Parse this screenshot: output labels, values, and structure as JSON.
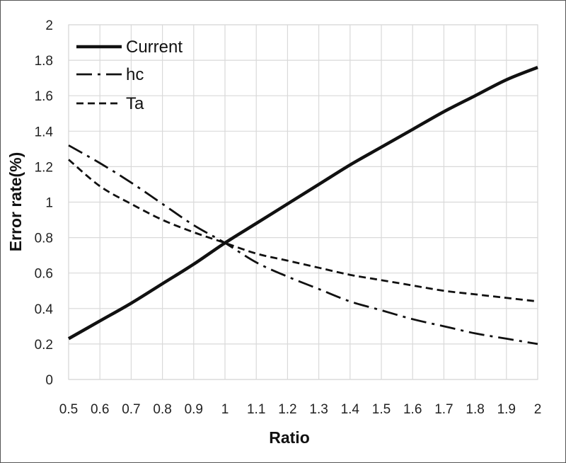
{
  "chart_data": {
    "type": "line",
    "title": "",
    "xlabel": "Ratio",
    "ylabel": "Error rate(%)",
    "xlim": [
      0.5,
      2
    ],
    "ylim": [
      0,
      2
    ],
    "grid": true,
    "legend_position": "top-left",
    "x": [
      0.5,
      0.6,
      0.7,
      0.8,
      0.9,
      1.0,
      1.1,
      1.2,
      1.3,
      1.4,
      1.5,
      1.6,
      1.7,
      1.8,
      1.9,
      2.0
    ],
    "x_tick_labels": [
      "0.5",
      "0.6",
      "0.7",
      "0.8",
      "0.9",
      "1",
      "1.1",
      "1.2",
      "1.3",
      "1.4",
      "1.5",
      "1.6",
      "1.7",
      "1.8",
      "1.9",
      "2"
    ],
    "y_tick_labels": [
      "0",
      "0.2",
      "0.4",
      "0.6",
      "0.8",
      "1",
      "1.2",
      "1.4",
      "1.6",
      "1.8",
      "2"
    ],
    "series": [
      {
        "name": "Current",
        "style": "solid",
        "color": "#111111",
        "values": [
          0.23,
          0.33,
          0.43,
          0.54,
          0.65,
          0.77,
          0.88,
          0.99,
          1.1,
          1.21,
          1.31,
          1.41,
          1.51,
          1.6,
          1.69,
          1.76
        ]
      },
      {
        "name": "hc",
        "style": "dashdot",
        "color": "#111111",
        "values": [
          1.32,
          1.22,
          1.11,
          0.99,
          0.87,
          0.77,
          0.66,
          0.58,
          0.51,
          0.44,
          0.39,
          0.34,
          0.3,
          0.26,
          0.23,
          0.2
        ]
      },
      {
        "name": "Ta",
        "style": "dashed",
        "color": "#111111",
        "values": [
          1.24,
          1.09,
          0.99,
          0.9,
          0.83,
          0.77,
          0.71,
          0.67,
          0.63,
          0.59,
          0.56,
          0.53,
          0.5,
          0.48,
          0.46,
          0.44
        ]
      }
    ]
  }
}
